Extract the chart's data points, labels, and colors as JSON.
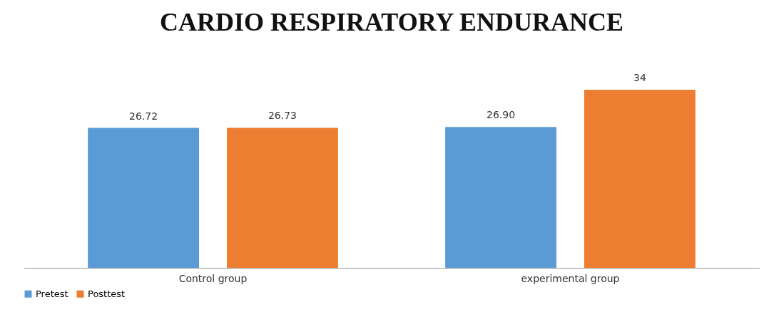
{
  "chart_data": {
    "type": "bar",
    "title": "CARDIO RESPIRATORY  ENDURANCE",
    "categories": [
      "Control group",
      "experimental group"
    ],
    "legend": "bottom",
    "series": [
      {
        "name": "Pretest",
        "color": "#5b9bd5",
        "values": [
          26.72,
          26.9
        ],
        "value_labels": [
          "26.72",
          "26.90"
        ]
      },
      {
        "name": "Posttest",
        "color": "#ed7d31",
        "values": [
          26.73,
          34
        ],
        "value_labels": [
          "26.73",
          "34"
        ]
      }
    ]
  }
}
